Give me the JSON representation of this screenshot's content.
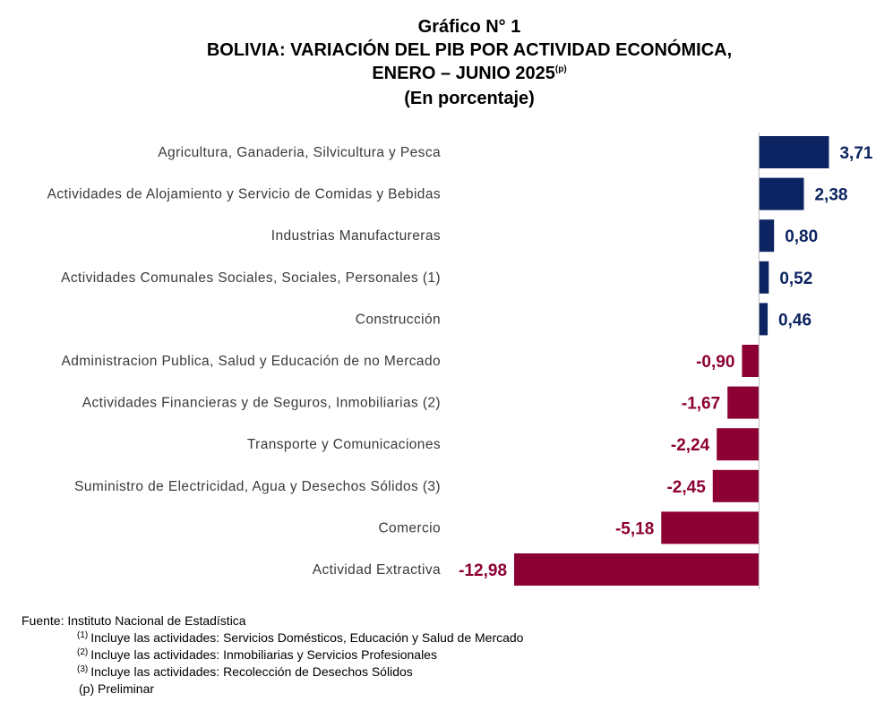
{
  "chart_data": {
    "type": "bar",
    "orientation": "horizontal",
    "title_lines": [
      "Gráfico N° 1",
      "BOLIVIA: VARIACIÓN DEL PIB POR ACTIVIDAD ECONÓMICA,",
      "ENERO – JUNIO 2025",
      "(En porcentaje)"
    ],
    "title_note": "(p)",
    "categories": [
      "Agricultura, Ganaderia, Silvicultura y Pesca",
      "Actividades de Alojamiento y Servicio de Comidas y Bebidas",
      "Industrias Manufactureras",
      "Actividades Comunales Sociales, Sociales, Personales (1)",
      "Construcción",
      "Administracion Publica, Salud y Educación de no Mercado",
      "Actividades Financieras y de Seguros, Inmobiliarias (2)",
      "Transporte y Comunicaciones",
      "Suministro de Electricidad, Agua y Desechos Sólidos (3)",
      "Comercio",
      "Actividad Extractiva"
    ],
    "values": [
      3.71,
      2.38,
      0.8,
      0.52,
      0.46,
      -0.9,
      -1.67,
      -2.24,
      -2.45,
      -5.18,
      -12.98
    ],
    "value_labels": [
      "3,71",
      "2,38",
      "0,80",
      "0,52",
      "0,46",
      "-0,90",
      "-1,67",
      "-2,24",
      "-2,45",
      "-5,18",
      "-12,98"
    ],
    "positive_color": "#0c2461",
    "negative_color": "#8c0034",
    "xlim": [
      -13,
      4
    ],
    "source": "Fuente: Instituto Nacional de Estadística",
    "notes": [
      {
        "marker": "(1)",
        "text": "Incluye las actividades: Servicios Domésticos, Educación y Salud de Mercado"
      },
      {
        "marker": "(2)",
        "text": "Incluye las actividades: Inmobiliarias y Servicios Profesionales"
      },
      {
        "marker": "(3)",
        "text": "Incluye las actividades: Recolección de Desechos Sólidos"
      }
    ],
    "preliminary_note": "(p) Preliminar"
  }
}
